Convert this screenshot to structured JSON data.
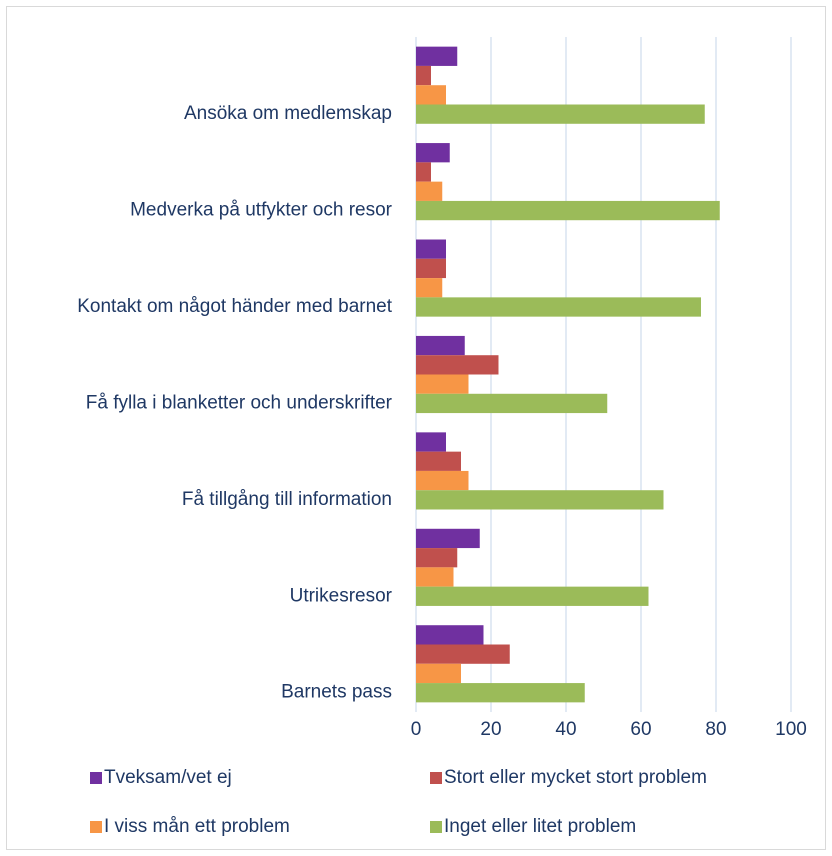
{
  "chart_data": {
    "type": "bar",
    "orientation": "horizontal",
    "categories": [
      "Ansöka om medlemskap",
      "Medverka på utfykter och resor ",
      "Kontakt om något händer med barnet",
      "Få fylla i blanketter och underskrifter",
      "Få tillgång till information",
      "Utrikesresor",
      "Barnets pass"
    ],
    "series": [
      {
        "name": "Tveksam/vet ej",
        "color": "#7030a0",
        "values": [
          11,
          9,
          8,
          13,
          8,
          17,
          18
        ]
      },
      {
        "name": "Stort eller mycket stort problem",
        "color": "#c0504d",
        "values": [
          4,
          4,
          8,
          22,
          12,
          11,
          25
        ]
      },
      {
        "name": "I viss mån ett problem",
        "color": "#f79646",
        "values": [
          8,
          7,
          7,
          14,
          14,
          10,
          12
        ]
      },
      {
        "name": "Inget eller litet problem",
        "color": "#9bbb59",
        "values": [
          77,
          81,
          76,
          51,
          66,
          62,
          45
        ]
      }
    ],
    "xlim": [
      0,
      100
    ],
    "xticks": [
      0,
      20,
      40,
      60,
      80,
      100
    ],
    "grid": true
  }
}
